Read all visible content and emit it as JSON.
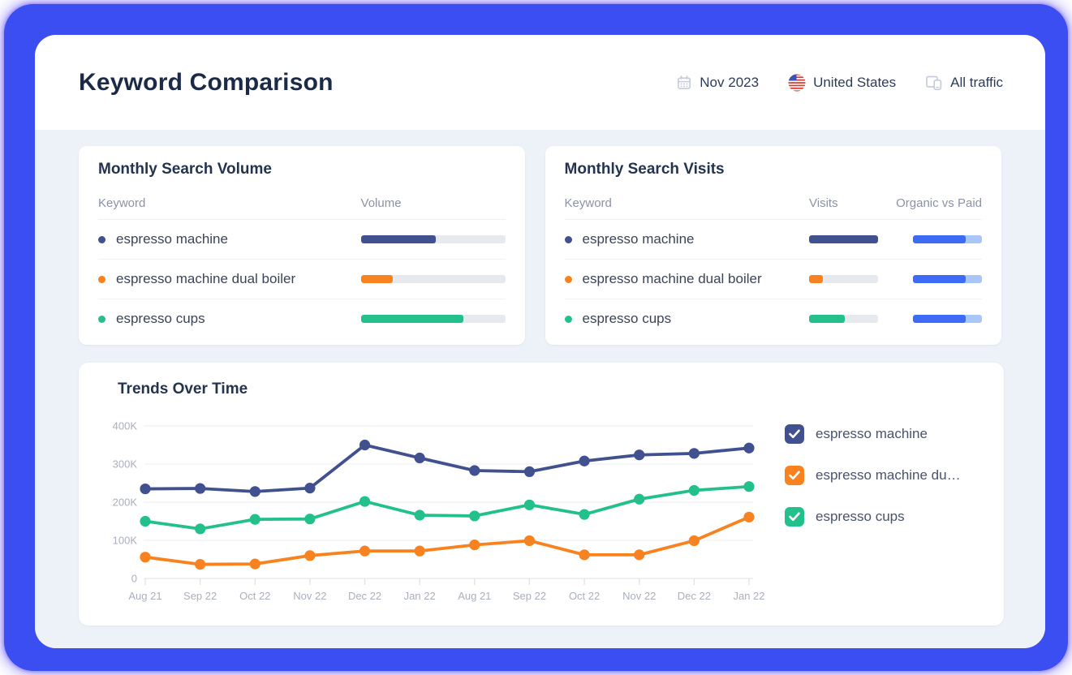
{
  "page": {
    "title": "Keyword Comparison"
  },
  "header": {
    "date": {
      "icon": "calendar-icon",
      "label": "Nov 2023"
    },
    "country": {
      "icon": "us-flag-icon",
      "label": "United States"
    },
    "traffic": {
      "icon": "devices-icon",
      "label": "All traffic"
    }
  },
  "colors": {
    "frame_blue": "#3a4ef2",
    "panel_bg": "#edf1f8",
    "track_gray": "#e6e9ee",
    "organic_blue": "#3d6bf5",
    "paid_blue": "#a9c6fb",
    "navy": "#41508e",
    "orange": "#f8821f",
    "green": "#24c08c",
    "axis_gray": "#a8afbd"
  },
  "volume_card": {
    "title": "Monthly Search Volume",
    "columns": {
      "keyword": "Keyword",
      "volume": "Volume"
    },
    "rows": [
      {
        "keyword": "espresso machine",
        "color": "#41508e",
        "volume_pct": 52
      },
      {
        "keyword": "espresso machine dual boiler",
        "color": "#f8821f",
        "volume_pct": 22
      },
      {
        "keyword": "espresso cups",
        "color": "#24c08c",
        "volume_pct": 71
      }
    ]
  },
  "visits_card": {
    "title": "Monthly Search Visits",
    "columns": {
      "keyword": "Keyword",
      "visits": "Visits",
      "organic": "Organic vs Paid"
    },
    "rows": [
      {
        "keyword": "espresso machine",
        "color": "#41508e",
        "visits_pct": 100,
        "organic_pct": 76
      },
      {
        "keyword": "espresso machine dual boiler",
        "color": "#f8821f",
        "visits_pct": 20,
        "organic_pct": 77
      },
      {
        "keyword": "espresso cups",
        "color": "#24c08c",
        "visits_pct": 52,
        "organic_pct": 76
      }
    ]
  },
  "trends_card": {
    "title": "Trends Over Time",
    "legend": [
      {
        "label": "espresso machine",
        "color": "#41508e",
        "checked": true
      },
      {
        "label": "espresso machine du…",
        "color": "#f8821f",
        "checked": true
      },
      {
        "label": "espresso cups",
        "color": "#24c08c",
        "checked": true
      }
    ]
  },
  "chart_data": {
    "type": "line",
    "x": [
      "Aug 21",
      "Sep 22",
      "Oct 22",
      "Nov 22",
      "Dec 22",
      "Jan 22",
      "Aug 21",
      "Sep 22",
      "Oct 22",
      "Nov 22",
      "Dec 22",
      "Jan 22"
    ],
    "series": [
      {
        "name": "espresso machine",
        "color": "#41508e",
        "values": [
          235000,
          236000,
          228000,
          237000,
          350000,
          316000,
          283000,
          280000,
          308000,
          324000,
          328000,
          342000
        ]
      },
      {
        "name": "espresso machine dual boiler",
        "color": "#f8821f",
        "values": [
          56000,
          37000,
          38000,
          60000,
          72000,
          72000,
          88000,
          99000,
          62000,
          62000,
          99000,
          161000
        ]
      },
      {
        "name": "espresso cups",
        "color": "#24c08c",
        "values": [
          150000,
          130000,
          155000,
          156000,
          202000,
          166000,
          164000,
          193000,
          168000,
          208000,
          231000,
          241000
        ]
      }
    ],
    "yticks": [
      {
        "label": "400K",
        "value": 400000
      },
      {
        "label": "300K",
        "value": 300000
      },
      {
        "label": "200K",
        "value": 200000
      },
      {
        "label": "100K",
        "value": 100000
      },
      {
        "label": "0",
        "value": 0
      }
    ],
    "ylim": [
      0,
      400000
    ],
    "grid": true,
    "legend_position": "right"
  }
}
